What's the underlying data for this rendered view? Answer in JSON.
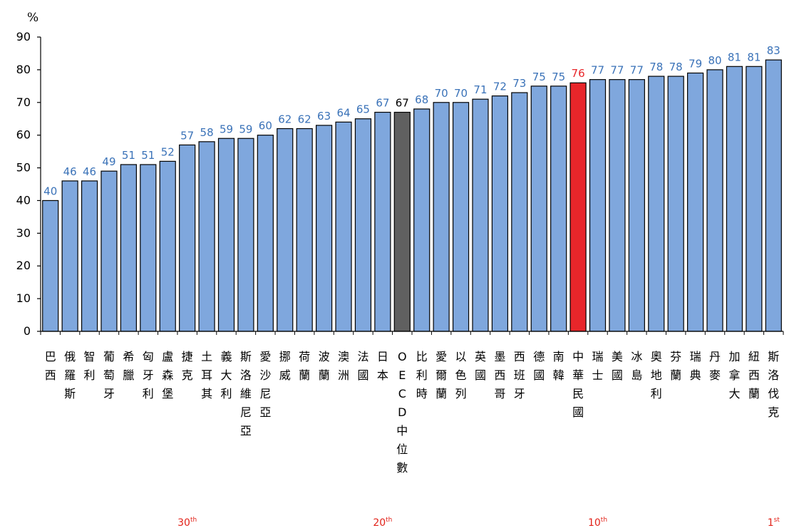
{
  "chart_data": {
    "type": "bar",
    "ylabel": "%",
    "ylim": [
      0,
      90
    ],
    "yticks": [
      "0",
      "10",
      "20",
      "30",
      "40",
      "50",
      "60",
      "70",
      "80",
      "90"
    ],
    "grid": false,
    "colors": {
      "bar": "#7fa7dd",
      "highlight": "#e8262a",
      "median": "#606060",
      "value_label": "#3a72b8",
      "highlight_label": "#e8262a",
      "median_label": "#000000"
    },
    "categories": [
      "巴西",
      "俄羅斯",
      "智利",
      "葡萄牙",
      "希臘",
      "匈牙利",
      "盧森堡",
      "捷克",
      "土耳其",
      "義大利",
      "斯洛維尼亞",
      "愛沙尼亞",
      "挪威",
      "荷蘭",
      "波蘭",
      "澳洲",
      "法國",
      "日本",
      "OECD中位數",
      "比利時",
      "愛爾蘭",
      "以色列",
      "英國",
      "墨西哥",
      "西班牙",
      "德國",
      "南韓",
      "中華民國",
      "瑞士",
      "美國",
      "冰島",
      "奧地利",
      "芬蘭",
      "瑞典",
      "丹麥",
      "加拿大",
      "紐西蘭",
      "斯洛伐克"
    ],
    "values": [
      40,
      46,
      46,
      49,
      51,
      51,
      52,
      57,
      58,
      59,
      59,
      60,
      62,
      62,
      63,
      64,
      65,
      67,
      67,
      68,
      70,
      70,
      71,
      72,
      73,
      75,
      75,
      76,
      77,
      77,
      77,
      78,
      78,
      79,
      80,
      81,
      81,
      83
    ],
    "highlight_index": 27,
    "median_index": 18,
    "rank_labels": [
      {
        "label": "30th",
        "at_index": 7
      },
      {
        "label": "20th",
        "at_index": 17
      },
      {
        "label": "10th",
        "at_index": 28
      },
      {
        "label": "1st",
        "at_index": 37
      }
    ]
  }
}
